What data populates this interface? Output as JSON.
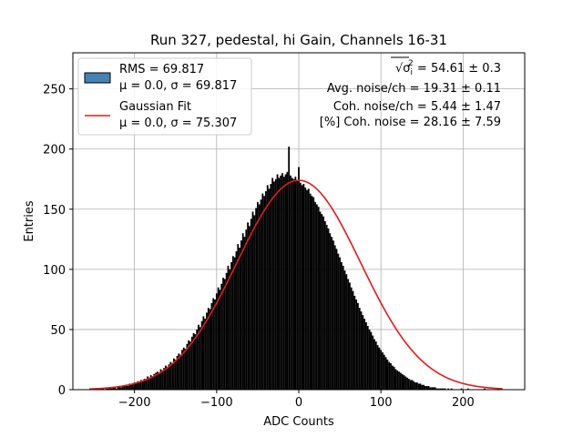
{
  "chart_data": {
    "type": "bar",
    "title": "Run 327, pedestal, hi Gain, Channels 16-31",
    "xlabel": "ADC Counts",
    "ylabel": "Entries",
    "xlim": [
      -275,
      275
    ],
    "ylim": [
      0,
      280
    ],
    "xticks": [
      -200,
      -100,
      0,
      100,
      200
    ],
    "yticks": [
      0,
      50,
      100,
      150,
      200,
      250
    ],
    "grid": true,
    "legend_position": "top-left",
    "histogram": {
      "name": "RMS = 69.817",
      "subname": "μ = 0.0, σ = 69.817",
      "bin_start": -253,
      "bin_width": 2,
      "fill_color": "#000000",
      "legend_color": "#4682b4",
      "values": [
        1,
        0,
        0,
        0,
        1,
        0,
        1,
        1,
        0,
        1,
        1,
        2,
        1,
        2,
        2,
        1,
        2,
        3,
        2,
        3,
        3,
        4,
        3,
        5,
        4,
        5,
        6,
        5,
        7,
        6,
        8,
        7,
        9,
        9,
        11,
        10,
        12,
        11,
        13,
        14,
        15,
        14,
        17,
        16,
        18,
        20,
        19,
        21,
        23,
        22,
        26,
        25,
        28,
        30,
        29,
        33,
        35,
        34,
        38,
        41,
        40,
        44,
        47,
        46,
        50,
        54,
        52,
        57,
        61,
        59,
        64,
        68,
        67,
        72,
        76,
        75,
        80,
        85,
        83,
        88,
        93,
        92,
        97,
        103,
        100,
        106,
        111,
        110,
        115,
        121,
        118,
        124,
        130,
        127,
        133,
        139,
        136,
        142,
        148,
        145,
        151,
        156,
        154,
        158,
        163,
        161,
        165,
        170,
        167,
        171,
        176,
        173,
        175,
        179,
        176,
        178,
        180,
        177,
        179,
        181,
        202,
        178,
        176,
        175,
        177,
        174,
        185,
        172,
        170,
        171,
        168,
        166,
        167,
        163,
        161,
        160,
        156,
        154,
        152,
        148,
        146,
        144,
        140,
        137,
        134,
        130,
        127,
        124,
        120,
        117,
        113,
        110,
        106,
        103,
        99,
        96,
        92,
        89,
        85,
        82,
        78,
        75,
        72,
        68,
        65,
        62,
        59,
        56,
        53,
        50,
        48,
        45,
        42,
        40,
        37,
        35,
        33,
        31,
        29,
        27,
        25,
        23,
        22,
        20,
        19,
        17,
        16,
        15,
        14,
        13,
        12,
        11,
        10,
        9,
        8,
        8,
        7,
        6,
        6,
        5,
        5,
        4,
        4,
        3,
        3,
        3,
        2,
        2,
        2,
        2,
        1,
        1,
        1,
        1,
        1,
        1,
        0,
        1,
        0,
        1,
        0,
        0,
        0,
        0,
        0,
        1,
        0,
        0,
        0,
        1,
        0,
        0,
        0,
        0,
        0,
        0,
        0,
        0,
        0,
        1,
        0,
        0,
        0,
        0,
        0,
        0,
        0,
        0,
        0,
        0,
        0,
        0,
        0,
        0,
        0
      ]
    },
    "fit": {
      "name": "Gaussian Fit",
      "subname": "μ = 0.0, σ = 75.307",
      "mu": 0.0,
      "sigma": 75.307,
      "amplitude": 174,
      "x_range": [
        -255,
        248
      ],
      "color": "#e31a1c"
    },
    "annotations": [
      {
        "prefix": "√σ",
        "sub": "i",
        "sup": "2",
        "text": " = 54.61 ± 0.3"
      },
      {
        "text": "Avg. noise/ch = 19.31 ± 0.11"
      },
      {
        "text": "Coh. noise/ch = 5.44 ± 1.47"
      },
      {
        "text": "[%] Coh. noise = 28.16 ± 7.59"
      }
    ]
  }
}
